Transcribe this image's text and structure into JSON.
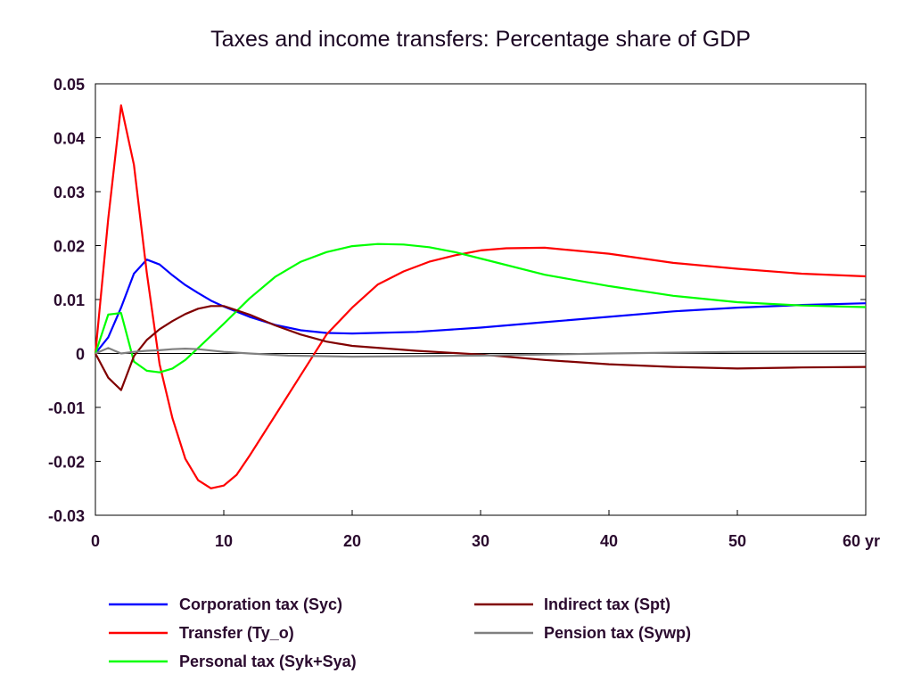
{
  "chart_data": {
    "type": "line",
    "title": "Taxes and income transfers: Percentage share of GDP",
    "xlabel": "",
    "ylabel": "",
    "xlim": [
      0,
      60
    ],
    "ylim": [
      -0.03,
      0.05
    ],
    "x_ticks": [
      0,
      10,
      20,
      30,
      40,
      50,
      60
    ],
    "x_tick_labels": [
      "0",
      "10",
      "20",
      "30",
      "40",
      "50",
      "60 yr"
    ],
    "y_ticks": [
      0.05,
      0.04,
      0.03,
      0.02,
      0.01,
      0,
      -0.01,
      -0.02,
      -0.03
    ],
    "y_tick_labels": [
      "0.05",
      "0.04",
      "0.03",
      "0.02",
      "0.01",
      "0",
      "-0.01",
      "-0.02",
      "-0.03"
    ],
    "grid": false,
    "legend_position": "bottom",
    "series": [
      {
        "name": "Corporation tax (Syc)",
        "color": "#0000ff",
        "x": [
          0,
          1,
          2,
          3,
          4,
          5,
          6,
          7,
          8,
          9,
          10,
          12,
          14,
          16,
          18,
          20,
          25,
          30,
          35,
          40,
          45,
          50,
          55,
          60
        ],
        "y": [
          0,
          0.003,
          0.0085,
          0.0148,
          0.0174,
          0.0165,
          0.0145,
          0.0127,
          0.0112,
          0.0098,
          0.0087,
          0.0068,
          0.0053,
          0.0043,
          0.0038,
          0.0037,
          0.004,
          0.0048,
          0.0058,
          0.0068,
          0.0078,
          0.0085,
          0.009,
          0.0093
        ]
      },
      {
        "name": "Transfer (Ty_o)",
        "color": "#ff0000",
        "x": [
          0,
          1,
          2,
          3,
          4,
          5,
          6,
          7,
          8,
          9,
          10,
          11,
          12,
          14,
          16,
          18,
          20,
          22,
          24,
          26,
          28,
          30,
          32,
          35,
          40,
          45,
          50,
          55,
          60
        ],
        "y": [
          0,
          0.025,
          0.046,
          0.035,
          0.015,
          -0.002,
          -0.012,
          -0.0195,
          -0.0235,
          -0.025,
          -0.0245,
          -0.0225,
          -0.019,
          -0.0115,
          -0.004,
          0.0035,
          0.0085,
          0.0128,
          0.0152,
          0.017,
          0.0182,
          0.0191,
          0.0195,
          0.0196,
          0.0185,
          0.0168,
          0.0157,
          0.0148,
          0.0143
        ]
      },
      {
        "name": "Personal tax (Syk+Sya)",
        "color": "#00ff00",
        "x": [
          0,
          1,
          2,
          3,
          4,
          5,
          6,
          7,
          8,
          10,
          12,
          14,
          16,
          18,
          20,
          22,
          24,
          26,
          28,
          30,
          35,
          40,
          45,
          50,
          55,
          60
        ],
        "y": [
          0,
          0.0072,
          0.0075,
          -0.0015,
          -0.0032,
          -0.0035,
          -0.0028,
          -0.0012,
          0.001,
          0.0055,
          0.0102,
          0.0142,
          0.017,
          0.0188,
          0.0199,
          0.0203,
          0.0202,
          0.0197,
          0.0188,
          0.0176,
          0.0146,
          0.0125,
          0.0107,
          0.0095,
          0.0089,
          0.0086
        ]
      },
      {
        "name": "Indirect tax (Spt)",
        "color": "#800000",
        "x": [
          0,
          1,
          2,
          3,
          4,
          5,
          6,
          7,
          8,
          9,
          10,
          12,
          14,
          16,
          18,
          20,
          25,
          30,
          35,
          40,
          45,
          50,
          55,
          60
        ],
        "y": [
          0,
          -0.0045,
          -0.0068,
          -0.0005,
          0.0025,
          0.0045,
          0.006,
          0.0073,
          0.0083,
          0.0088,
          0.0088,
          0.0072,
          0.0052,
          0.0035,
          0.0022,
          0.0014,
          0.0005,
          -0.0002,
          -0.0012,
          -0.002,
          -0.0025,
          -0.0028,
          -0.0026,
          -0.0025
        ]
      },
      {
        "name": "Pension tax (Sywp)",
        "color": "#808080",
        "x": [
          0,
          1,
          2,
          3,
          4,
          5,
          6,
          7,
          8,
          10,
          12,
          15,
          20,
          25,
          30,
          40,
          50,
          60
        ],
        "y": [
          0,
          0.001,
          0.0,
          0.0003,
          0.0005,
          0.0006,
          0.0008,
          0.0009,
          0.0008,
          0.0003,
          0.0,
          -0.0004,
          -0.0006,
          -0.0005,
          -0.0004,
          0.0,
          0.0003,
          0.0004
        ]
      }
    ]
  }
}
